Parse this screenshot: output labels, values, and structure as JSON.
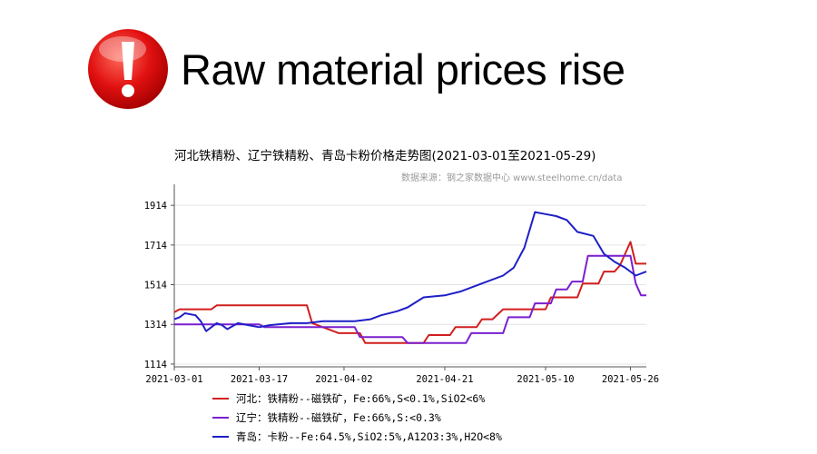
{
  "headline": {
    "icon": "exclamation-alert-icon",
    "text": "Raw material prices rise",
    "icon_color": "#e01010"
  },
  "chart_data": {
    "type": "line",
    "title": "河北铁精粉、辽宁铁精粉、青岛卡粉价格走势图(2021-03-01至2021-05-29)",
    "source": "数据来源：钢之家数据中心 www.steelhome.cn/data",
    "xlabel": "",
    "ylabel": "",
    "x_ticks": [
      "2021-03-01",
      "2021-03-17",
      "2021-04-02",
      "2021-04-21",
      "2021-05-10",
      "2021-05-26"
    ],
    "y_ticks": [
      1114,
      1314,
      1514,
      1714,
      1914
    ],
    "xlim": [
      "2021-03-01",
      "2021-05-29"
    ],
    "ylim": [
      1100,
      2020
    ],
    "grid": "horizontal",
    "legend_position": "bottom",
    "series": [
      {
        "name": "河北：铁精粉--磁铁矿，Fe:66%,S<0.1%,SiO2<6%",
        "color": "#d21f1f",
        "points": [
          [
            "2021-03-01",
            1375
          ],
          [
            "2021-03-02",
            1390
          ],
          [
            "2021-03-08",
            1390
          ],
          [
            "2021-03-09",
            1410
          ],
          [
            "2021-03-26",
            1410
          ],
          [
            "2021-03-27",
            1320
          ],
          [
            "2021-03-29",
            1300
          ],
          [
            "2021-03-31",
            1280
          ],
          [
            "2021-04-01",
            1270
          ],
          [
            "2021-04-05",
            1270
          ],
          [
            "2021-04-06",
            1220
          ],
          [
            "2021-04-17",
            1220
          ],
          [
            "2021-04-18",
            1260
          ],
          [
            "2021-04-22",
            1260
          ],
          [
            "2021-04-23",
            1300
          ],
          [
            "2021-04-27",
            1300
          ],
          [
            "2021-04-28",
            1340
          ],
          [
            "2021-04-30",
            1340
          ],
          [
            "2021-05-02",
            1390
          ],
          [
            "2021-05-10",
            1390
          ],
          [
            "2021-05-11",
            1450
          ],
          [
            "2021-05-16",
            1450
          ],
          [
            "2021-05-17",
            1520
          ],
          [
            "2021-05-20",
            1520
          ],
          [
            "2021-05-21",
            1580
          ],
          [
            "2021-05-23",
            1580
          ],
          [
            "2021-05-24",
            1610
          ],
          [
            "2021-05-26",
            1730
          ],
          [
            "2021-05-27",
            1620
          ],
          [
            "2021-05-29",
            1620
          ]
        ]
      },
      {
        "name": "辽宁：铁精粉--磁铁矿，Fe:66%,S:<0.3%",
        "color": "#7b1fcf",
        "points": [
          [
            "2021-03-01",
            1314
          ],
          [
            "2021-03-17",
            1314
          ],
          [
            "2021-03-18",
            1300
          ],
          [
            "2021-04-04",
            1300
          ],
          [
            "2021-04-05",
            1250
          ],
          [
            "2021-04-13",
            1250
          ],
          [
            "2021-04-14",
            1220
          ],
          [
            "2021-04-25",
            1220
          ],
          [
            "2021-04-26",
            1270
          ],
          [
            "2021-05-02",
            1270
          ],
          [
            "2021-05-03",
            1350
          ],
          [
            "2021-05-07",
            1350
          ],
          [
            "2021-05-08",
            1420
          ],
          [
            "2021-05-11",
            1420
          ],
          [
            "2021-05-12",
            1490
          ],
          [
            "2021-05-14",
            1490
          ],
          [
            "2021-05-15",
            1530
          ],
          [
            "2021-05-17",
            1530
          ],
          [
            "2021-05-18",
            1660
          ],
          [
            "2021-05-26",
            1660
          ],
          [
            "2021-05-27",
            1520
          ],
          [
            "2021-05-28",
            1460
          ],
          [
            "2021-05-29",
            1460
          ]
        ]
      },
      {
        "name": "青岛：卡粉--Fe:64.5%,SiO2:5%,A12O3:3%,H2O<8%",
        "color": "#1f1fc6",
        "points": [
          [
            "2021-03-01",
            1340
          ],
          [
            "2021-03-02",
            1350
          ],
          [
            "2021-03-03",
            1370
          ],
          [
            "2021-03-05",
            1360
          ],
          [
            "2021-03-06",
            1330
          ],
          [
            "2021-03-07",
            1280
          ],
          [
            "2021-03-09",
            1320
          ],
          [
            "2021-03-10",
            1310
          ],
          [
            "2021-03-11",
            1290
          ],
          [
            "2021-03-13",
            1320
          ],
          [
            "2021-03-15",
            1310
          ],
          [
            "2021-03-17",
            1300
          ],
          [
            "2021-03-19",
            1310
          ],
          [
            "2021-03-23",
            1320
          ],
          [
            "2021-03-26",
            1320
          ],
          [
            "2021-03-29",
            1330
          ],
          [
            "2021-04-01",
            1330
          ],
          [
            "2021-04-04",
            1330
          ],
          [
            "2021-04-07",
            1340
          ],
          [
            "2021-04-09",
            1360
          ],
          [
            "2021-04-12",
            1380
          ],
          [
            "2021-04-14",
            1400
          ],
          [
            "2021-04-17",
            1450
          ],
          [
            "2021-04-21",
            1460
          ],
          [
            "2021-04-24",
            1480
          ],
          [
            "2021-04-28",
            1520
          ],
          [
            "2021-05-02",
            1560
          ],
          [
            "2021-05-04",
            1600
          ],
          [
            "2021-05-06",
            1700
          ],
          [
            "2021-05-08",
            1880
          ],
          [
            "2021-05-10",
            1870
          ],
          [
            "2021-05-12",
            1860
          ],
          [
            "2021-05-14",
            1840
          ],
          [
            "2021-05-16",
            1780
          ],
          [
            "2021-05-19",
            1760
          ],
          [
            "2021-05-21",
            1670
          ],
          [
            "2021-05-23",
            1630
          ],
          [
            "2021-05-25",
            1600
          ],
          [
            "2021-05-27",
            1560
          ],
          [
            "2021-05-29",
            1580
          ]
        ]
      }
    ]
  }
}
